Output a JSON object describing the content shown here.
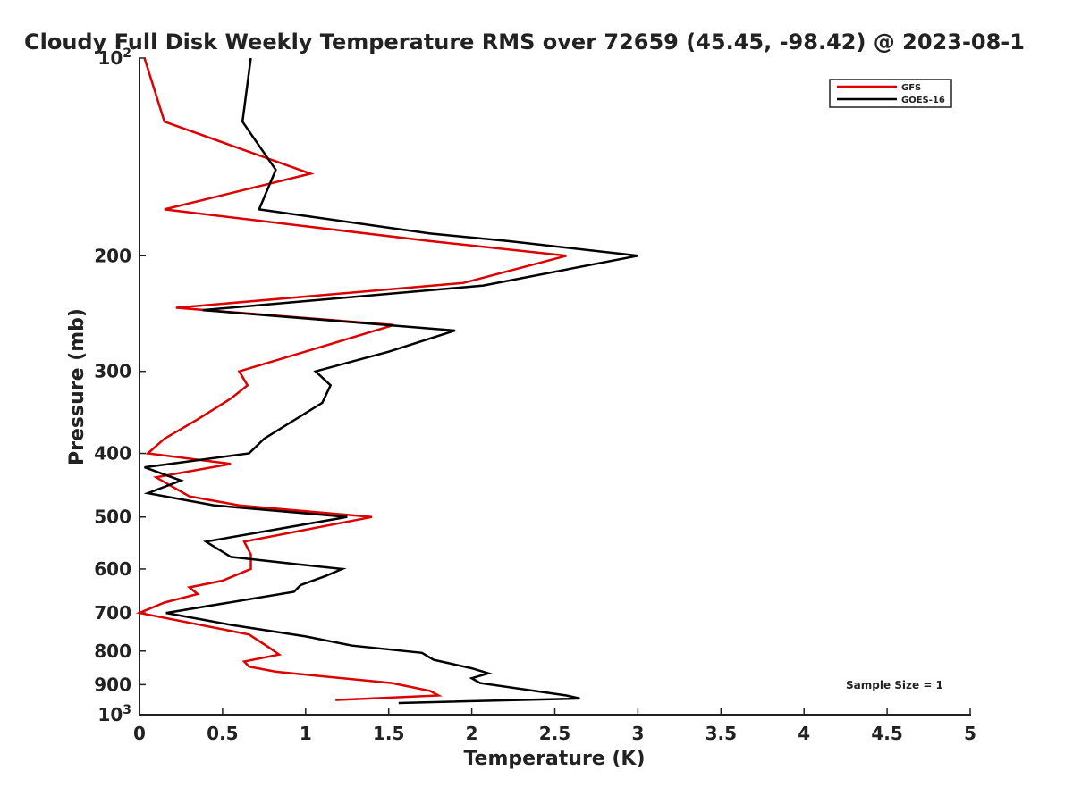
{
  "chart_data": {
    "type": "line",
    "title": "Cloudy Full Disk Weekly Temperature RMS over 72659 (45.45, -98.42) @ 2023-08-1",
    "xlabel": "Temperature (K)",
    "ylabel": "Pressure (mb)",
    "xlim": [
      0,
      5
    ],
    "ylim": [
      100,
      1000
    ],
    "y_scale": "log",
    "y_reversed": true,
    "grid": false,
    "legend_position": "top-right",
    "x_ticks": [
      0,
      0.5,
      1,
      1.5,
      2,
      2.5,
      3,
      3.5,
      4,
      4.5,
      5
    ],
    "x_tick_labels": [
      "0",
      "0.5",
      "1",
      "1.5",
      "2",
      "2.5",
      "3",
      "3.5",
      "4",
      "4.5",
      "5"
    ],
    "y_ticks": [
      {
        "value": 100,
        "base": "10",
        "exp": "2"
      },
      {
        "value": 200,
        "label": "200"
      },
      {
        "value": 300,
        "label": "300"
      },
      {
        "value": 400,
        "label": "400"
      },
      {
        "value": 500,
        "label": "500"
      },
      {
        "value": 600,
        "label": "600"
      },
      {
        "value": 700,
        "label": "700"
      },
      {
        "value": 800,
        "label": "800"
      },
      {
        "value": 900,
        "label": "900"
      },
      {
        "value": 1000,
        "base": "10",
        "exp": "3"
      }
    ],
    "series": [
      {
        "name": "GFS",
        "color": "#dd0000",
        "points": [
          [
            0.03,
            100
          ],
          [
            0.15,
            125
          ],
          [
            1.03,
            150
          ],
          [
            0.15,
            170
          ],
          [
            1.75,
            190
          ],
          [
            2.57,
            200
          ],
          [
            1.95,
            220
          ],
          [
            0.22,
            240
          ],
          [
            1.53,
            255
          ],
          [
            1.1,
            275
          ],
          [
            0.6,
            300
          ],
          [
            0.65,
            315
          ],
          [
            0.55,
            330
          ],
          [
            0.35,
            355
          ],
          [
            0.15,
            380
          ],
          [
            0.05,
            400
          ],
          [
            0.55,
            415
          ],
          [
            0.1,
            435
          ],
          [
            0.2,
            450
          ],
          [
            0.3,
            465
          ],
          [
            0.6,
            480
          ],
          [
            1.4,
            500
          ],
          [
            0.63,
            545
          ],
          [
            0.67,
            570
          ],
          [
            0.67,
            600
          ],
          [
            0.5,
            625
          ],
          [
            0.3,
            640
          ],
          [
            0.35,
            655
          ],
          [
            0.15,
            675
          ],
          [
            0.0,
            700
          ],
          [
            0.66,
            755
          ],
          [
            0.78,
            790
          ],
          [
            0.84,
            810
          ],
          [
            0.63,
            830
          ],
          [
            0.66,
            845
          ],
          [
            0.82,
            860
          ],
          [
            1.52,
            895
          ],
          [
            1.75,
            920
          ],
          [
            1.8,
            935
          ],
          [
            1.18,
            950
          ]
        ]
      },
      {
        "name": "GOES-16",
        "color": "#000000",
        "points": [
          [
            0.67,
            100
          ],
          [
            0.62,
            125
          ],
          [
            0.82,
            148
          ],
          [
            0.72,
            170
          ],
          [
            1.75,
            185
          ],
          [
            2.22,
            190
          ],
          [
            3.0,
            200
          ],
          [
            2.07,
            222
          ],
          [
            0.38,
            242
          ],
          [
            1.9,
            260
          ],
          [
            1.5,
            280
          ],
          [
            1.06,
            300
          ],
          [
            1.15,
            315
          ],
          [
            1.1,
            335
          ],
          [
            0.75,
            380
          ],
          [
            0.66,
            400
          ],
          [
            0.03,
            420
          ],
          [
            0.25,
            440
          ],
          [
            0.05,
            460
          ],
          [
            0.45,
            480
          ],
          [
            1.25,
            500
          ],
          [
            0.4,
            545
          ],
          [
            0.55,
            575
          ],
          [
            0.95,
            590
          ],
          [
            1.22,
            600
          ],
          [
            1.12,
            615
          ],
          [
            0.97,
            635
          ],
          [
            0.93,
            650
          ],
          [
            0.16,
            700
          ],
          [
            0.55,
            730
          ],
          [
            1.0,
            760
          ],
          [
            1.28,
            785
          ],
          [
            1.7,
            805
          ],
          [
            1.77,
            825
          ],
          [
            2.0,
            850
          ],
          [
            2.1,
            865
          ],
          [
            2.0,
            880
          ],
          [
            2.05,
            895
          ],
          [
            2.57,
            935
          ],
          [
            2.65,
            945
          ],
          [
            1.56,
            960
          ]
        ]
      }
    ],
    "annotation": "Sample Size = 1"
  }
}
